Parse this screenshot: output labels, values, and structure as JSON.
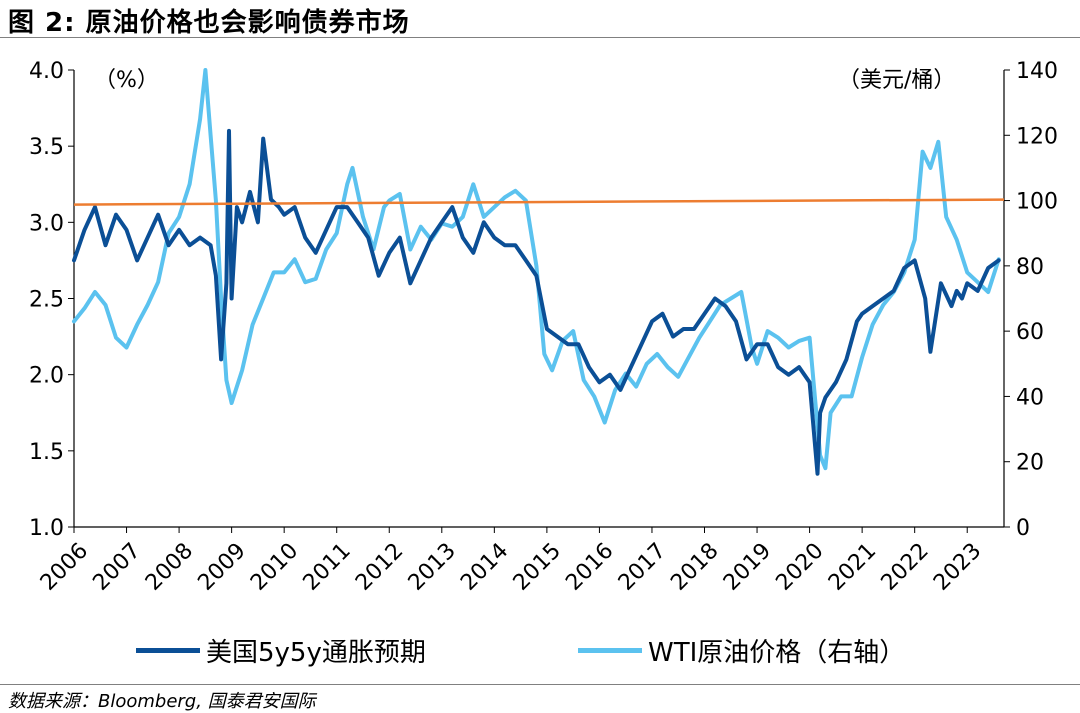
{
  "title": "图 2:   原油价格也会影响债券市场",
  "source": "数据来源：Bloomberg, 国泰君安国际",
  "legend": {
    "series1": "美国5y5y通胀预期",
    "series2": "WTI原油价格（右轴）"
  },
  "colors": {
    "series1": "#0b4f96",
    "series2": "#5bc2ef",
    "reference": "#ed7d31"
  },
  "chart_data": {
    "type": "line",
    "left_axis_unit": "（%）",
    "right_axis_unit": "（美元/桶）",
    "ylim_left": [
      1.0,
      4.0
    ],
    "yticks_left": [
      "1.0",
      "1.5",
      "2.0",
      "2.5",
      "3.0",
      "3.5",
      "4.0"
    ],
    "ylim_right": [
      0,
      140
    ],
    "yticks_right": [
      "0",
      "20",
      "40",
      "60",
      "80",
      "100",
      "120",
      "140"
    ],
    "xlim": [
      2006.0,
      2023.7
    ],
    "xticks": [
      "2006",
      "2007",
      "2008",
      "2009",
      "2010",
      "2011",
      "2012",
      "2013",
      "2014",
      "2015",
      "2016",
      "2017",
      "2018",
      "2019",
      "2020",
      "2021",
      "2022",
      "2023"
    ],
    "reference_line": {
      "axis": "right",
      "value": 100
    },
    "series": [
      {
        "name": "美国5y5y通胀预期",
        "axis": "left",
        "x": [
          2006.0,
          2006.2,
          2006.4,
          2006.6,
          2006.8,
          2007.0,
          2007.2,
          2007.4,
          2007.6,
          2007.8,
          2008.0,
          2008.2,
          2008.4,
          2008.6,
          2008.7,
          2008.8,
          2008.9,
          2008.95,
          2009.0,
          2009.1,
          2009.2,
          2009.35,
          2009.5,
          2009.6,
          2009.75,
          2009.9,
          2010.0,
          2010.2,
          2010.4,
          2010.6,
          2010.8,
          2011.0,
          2011.2,
          2011.4,
          2011.6,
          2011.8,
          2012.0,
          2012.2,
          2012.4,
          2012.6,
          2012.8,
          2013.0,
          2013.2,
          2013.4,
          2013.6,
          2013.8,
          2014.0,
          2014.2,
          2014.4,
          2014.6,
          2014.8,
          2015.0,
          2015.2,
          2015.4,
          2015.6,
          2015.8,
          2016.0,
          2016.2,
          2016.4,
          2016.6,
          2016.8,
          2017.0,
          2017.2,
          2017.4,
          2017.6,
          2017.8,
          2018.0,
          2018.2,
          2018.4,
          2018.6,
          2018.8,
          2019.0,
          2019.2,
          2019.4,
          2019.6,
          2019.8,
          2020.0,
          2020.15,
          2020.2,
          2020.3,
          2020.5,
          2020.7,
          2020.9,
          2021.0,
          2021.2,
          2021.4,
          2021.6,
          2021.8,
          2022.0,
          2022.2,
          2022.3,
          2022.5,
          2022.7,
          2022.8,
          2022.9,
          2023.0,
          2023.2,
          2023.4,
          2023.6
        ],
        "values": [
          2.75,
          2.95,
          3.1,
          2.85,
          3.05,
          2.95,
          2.75,
          2.9,
          3.05,
          2.85,
          2.95,
          2.85,
          2.9,
          2.85,
          2.65,
          2.1,
          2.6,
          3.6,
          2.5,
          3.1,
          3.0,
          3.2,
          3.0,
          3.55,
          3.15,
          3.1,
          3.05,
          3.1,
          2.9,
          2.8,
          2.95,
          3.1,
          3.1,
          3.0,
          2.9,
          2.65,
          2.8,
          2.9,
          2.6,
          2.75,
          2.9,
          3.0,
          3.1,
          2.9,
          2.8,
          3.0,
          2.9,
          2.85,
          2.85,
          2.75,
          2.65,
          2.3,
          2.25,
          2.2,
          2.2,
          2.05,
          1.95,
          2.0,
          1.9,
          2.05,
          2.2,
          2.35,
          2.4,
          2.25,
          2.3,
          2.3,
          2.4,
          2.5,
          2.45,
          2.35,
          2.1,
          2.2,
          2.2,
          2.05,
          2.0,
          2.05,
          1.95,
          1.35,
          1.75,
          1.85,
          1.95,
          2.1,
          2.35,
          2.4,
          2.45,
          2.5,
          2.55,
          2.7,
          2.75,
          2.5,
          2.15,
          2.6,
          2.45,
          2.55,
          2.5,
          2.6,
          2.55,
          2.7,
          2.75
        ]
      },
      {
        "name": "WTI原油价格（右轴）",
        "axis": "right",
        "x": [
          2006.0,
          2006.2,
          2006.4,
          2006.6,
          2006.8,
          2007.0,
          2007.2,
          2007.4,
          2007.6,
          2007.8,
          2008.0,
          2008.2,
          2008.4,
          2008.5,
          2008.6,
          2008.7,
          2008.8,
          2008.9,
          2009.0,
          2009.2,
          2009.4,
          2009.6,
          2009.8,
          2010.0,
          2010.2,
          2010.4,
          2010.6,
          2010.8,
          2011.0,
          2011.2,
          2011.3,
          2011.5,
          2011.7,
          2011.9,
          2012.0,
          2012.2,
          2012.4,
          2012.6,
          2012.8,
          2013.0,
          2013.2,
          2013.4,
          2013.6,
          2013.8,
          2014.0,
          2014.2,
          2014.4,
          2014.6,
          2014.8,
          2014.95,
          2015.1,
          2015.3,
          2015.5,
          2015.7,
          2015.9,
          2016.1,
          2016.3,
          2016.5,
          2016.7,
          2016.9,
          2017.1,
          2017.3,
          2017.5,
          2017.7,
          2017.9,
          2018.1,
          2018.3,
          2018.5,
          2018.7,
          2018.9,
          2019.0,
          2019.2,
          2019.4,
          2019.6,
          2019.8,
          2020.0,
          2020.2,
          2020.3,
          2020.4,
          2020.6,
          2020.8,
          2021.0,
          2021.2,
          2021.4,
          2021.6,
          2021.8,
          2022.0,
          2022.15,
          2022.3,
          2022.45,
          2022.6,
          2022.8,
          2023.0,
          2023.2,
          2023.4,
          2023.6
        ],
        "values": [
          63,
          67,
          72,
          68,
          58,
          55,
          62,
          68,
          75,
          90,
          95,
          105,
          125,
          140,
          120,
          100,
          70,
          45,
          38,
          48,
          62,
          70,
          78,
          78,
          82,
          75,
          76,
          85,
          90,
          105,
          110,
          95,
          85,
          98,
          100,
          102,
          85,
          92,
          88,
          93,
          92,
          95,
          105,
          95,
          98,
          101,
          103,
          100,
          80,
          53,
          48,
          57,
          60,
          45,
          40,
          32,
          42,
          47,
          43,
          50,
          53,
          49,
          46,
          52,
          58,
          63,
          68,
          70,
          72,
          55,
          50,
          60,
          58,
          55,
          57,
          58,
          22,
          18,
          35,
          40,
          40,
          52,
          62,
          68,
          72,
          78,
          88,
          115,
          110,
          118,
          95,
          88,
          78,
          75,
          72,
          82
        ]
      }
    ]
  }
}
